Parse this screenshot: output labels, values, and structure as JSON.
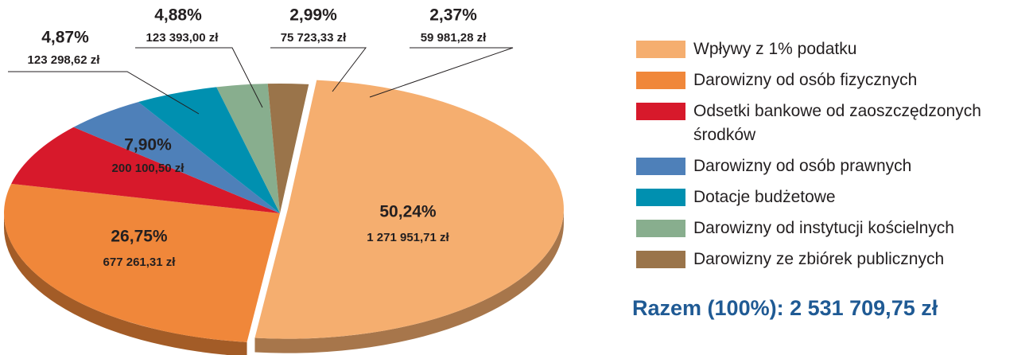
{
  "chart_data": {
    "type": "pie",
    "categories": [
      "Wpływy z 1% podatku",
      "Darowizny od osób fizycznych",
      "Odsetki bankowe od zaoszczędzonych środków",
      "Darowizny od osób prawnych",
      "Dotacje budżetowe",
      "Darowizny od instytucji kościelnych",
      "Darowizny ze zbiórek publicznych"
    ],
    "values": [
      50.24,
      26.75,
      7.9,
      4.87,
      4.88,
      2.99,
      2.37
    ],
    "value_labels": [
      "50,24%",
      "26,75%",
      "7,90%",
      "4,87%",
      "4,88%",
      "2,99%",
      "2,37%"
    ],
    "amounts": [
      1271951.71,
      677261.31,
      200100.5,
      123298.62,
      123393.0,
      75723.33,
      59981.28
    ],
    "amount_labels": [
      "1 271 951,71 zł",
      "677 261,31 zł",
      "200 100,50 zł",
      "123 298,62 zł",
      "123 393,00 zł",
      "75 723,33 zł",
      "59 981,28 zł"
    ],
    "colors": [
      "#f5ae6f",
      "#f0873a",
      "#d7192b",
      "#4e80b9",
      "#0090b0",
      "#88ae8e",
      "#9a744a"
    ],
    "total_label": "Razem (100%): 2 531 709,75 zł"
  }
}
